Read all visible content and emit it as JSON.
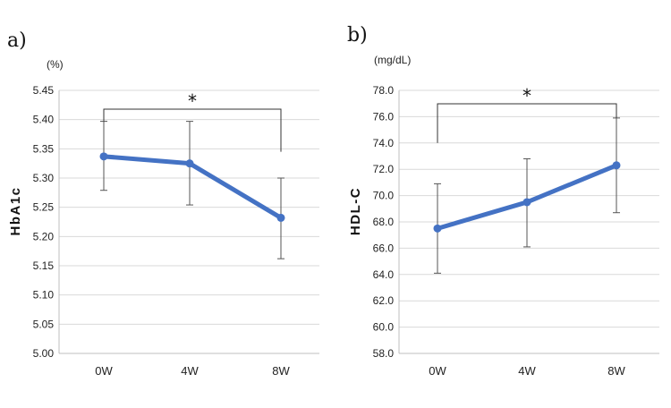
{
  "chart_data": [
    {
      "type": "line",
      "panel_label": "a)",
      "unit": "(%)",
      "ylabel": "HbA1c",
      "categories": [
        "0W",
        "4W",
        "8W"
      ],
      "series": [
        {
          "values": [
            5.337,
            5.325,
            5.232
          ],
          "error_low": [
            5.279,
            5.254,
            5.162
          ],
          "error_high": [
            5.397,
            5.397,
            5.3
          ]
        }
      ],
      "ylim": [
        5.0,
        5.45
      ],
      "yticks": [
        "5.00",
        "5.05",
        "5.10",
        "5.15",
        "5.20",
        "5.25",
        "5.30",
        "5.35",
        "5.40",
        "5.45"
      ],
      "grid": true,
      "line_color": "#4472c4",
      "significance": {
        "from": "0W",
        "to": "8W",
        "label": "*"
      }
    },
    {
      "type": "line",
      "panel_label": "b)",
      "unit": "(mg/dL)",
      "ylabel": "HDL-C",
      "categories": [
        "0W",
        "4W",
        "8W"
      ],
      "series": [
        {
          "values": [
            67.5,
            69.5,
            72.3
          ],
          "error_low": [
            64.1,
            66.1,
            68.7
          ],
          "error_high": [
            70.9,
            72.8,
            75.9
          ]
        }
      ],
      "ylim": [
        58.0,
        78.0
      ],
      "yticks": [
        "58.0",
        "60.0",
        "62.0",
        "64.0",
        "66.0",
        "68.0",
        "70.0",
        "72.0",
        "74.0",
        "76.0",
        "78.0"
      ],
      "grid": true,
      "line_color": "#4472c4",
      "significance": {
        "from": "0W",
        "to": "8W",
        "label": "*"
      }
    }
  ]
}
